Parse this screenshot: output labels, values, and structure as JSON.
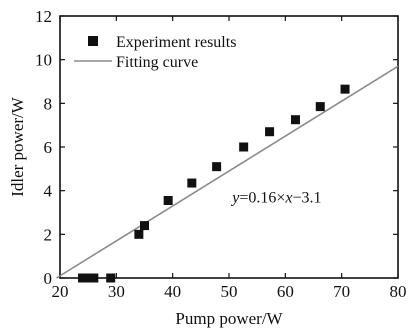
{
  "chart_data": {
    "type": "scatter",
    "xlabel": "Pump power/W",
    "ylabel": "Idler power/W",
    "xlim": [
      20,
      80
    ],
    "ylim": [
      0,
      12
    ],
    "x_ticks": [
      "20",
      "30",
      "40",
      "50",
      "60",
      "70",
      "80"
    ],
    "y_ticks": [
      "0",
      "2",
      "4",
      "6",
      "8",
      "10",
      "12"
    ],
    "legend_position": "top-left",
    "grid": false,
    "series": [
      {
        "name": "Experiment results",
        "kind": "scatter",
        "marker": "square",
        "color": "#111111",
        "points": [
          {
            "x": 24.0,
            "y": 0.0
          },
          {
            "x": 25.2,
            "y": 0.0
          },
          {
            "x": 26.0,
            "y": 0.0
          },
          {
            "x": 29.0,
            "y": 0.0
          },
          {
            "x": 34.0,
            "y": 2.0
          },
          {
            "x": 35.0,
            "y": 2.4
          },
          {
            "x": 39.2,
            "y": 3.55
          },
          {
            "x": 43.4,
            "y": 4.35
          },
          {
            "x": 47.8,
            "y": 5.1
          },
          {
            "x": 52.6,
            "y": 6.0
          },
          {
            "x": 57.2,
            "y": 6.7
          },
          {
            "x": 61.8,
            "y": 7.25
          },
          {
            "x": 66.2,
            "y": 7.85
          },
          {
            "x": 70.6,
            "y": 8.65
          }
        ]
      },
      {
        "name": "Fitting curve",
        "kind": "line",
        "color": "#8a8a8a",
        "slope": 0.16,
        "intercept": -3.1
      }
    ],
    "annotations": [
      {
        "text": "y=0.16×x−3.1",
        "parts": [
          {
            "text": "y",
            "italic": true
          },
          {
            "text": "=0.16×",
            "italic": false
          },
          {
            "text": "x",
            "italic": true
          },
          {
            "text": "−3.1",
            "italic": false
          }
        ],
        "at": {
          "x": 58.5,
          "y": 3.45
        }
      }
    ]
  }
}
